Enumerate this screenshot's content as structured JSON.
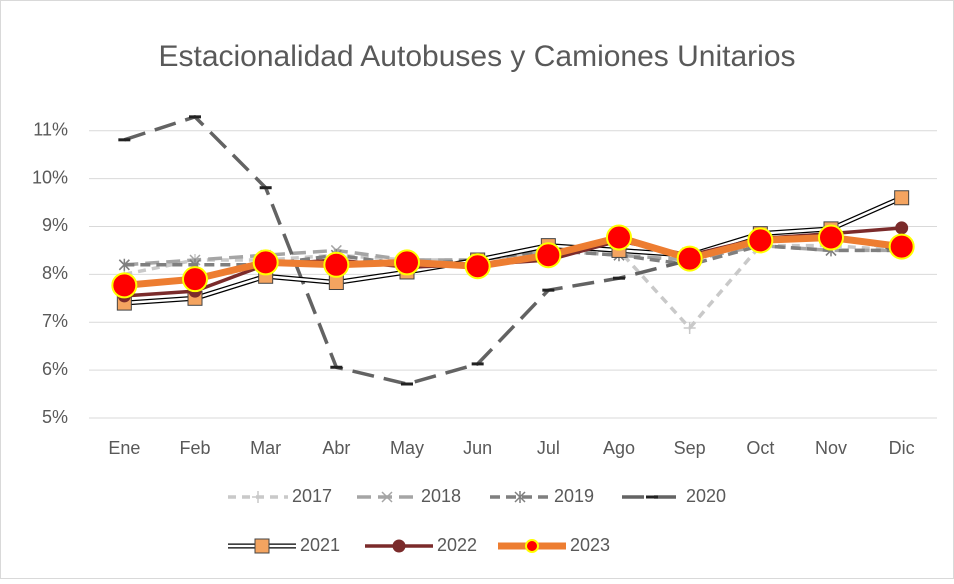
{
  "chart_data": {
    "type": "line",
    "title": "Estacionalidad Autobuses y Camiones Unitarios",
    "categories": [
      "Ene",
      "Feb",
      "Mar",
      "Abr",
      "May",
      "Jun",
      "Jul",
      "Ago",
      "Sep",
      "Oct",
      "Nov",
      "Dic"
    ],
    "ylim": [
      5,
      11.6
    ],
    "yticks": [
      {
        "value": 5,
        "label": "5%"
      },
      {
        "value": 6,
        "label": "6%"
      },
      {
        "value": 7,
        "label": "7%"
      },
      {
        "value": 8,
        "label": "8%"
      },
      {
        "value": 9,
        "label": "9%"
      },
      {
        "value": 10,
        "label": "10%"
      },
      {
        "value": 11,
        "label": "11%"
      }
    ],
    "grid": true,
    "legend": "bottom",
    "series": [
      {
        "name": "2017",
        "color": "#c9c9c9",
        "dash": "8,6",
        "marker": "plus",
        "values": [
          8.0,
          8.3,
          8.3,
          8.4,
          8.3,
          8.3,
          8.5,
          8.5,
          6.88,
          8.6,
          8.6,
          8.5
        ]
      },
      {
        "name": "2018",
        "color": "#a5a5a5",
        "dash": "14,7",
        "marker": "x",
        "values": [
          8.2,
          8.3,
          8.4,
          8.5,
          8.3,
          8.3,
          8.5,
          8.4,
          8.3,
          8.6,
          8.5,
          8.5
        ]
      },
      {
        "name": "2019",
        "color": "#7f7f7f",
        "dash": "10,6",
        "marker": "star",
        "values": [
          8.2,
          8.2,
          8.2,
          8.4,
          8.2,
          8.3,
          8.5,
          8.4,
          8.2,
          8.6,
          8.5,
          8.5
        ]
      },
      {
        "name": "2020",
        "color": "#636363",
        "dash": "22,10",
        "marker": "dash",
        "values": [
          10.81,
          11.29,
          9.81,
          6.06,
          5.71,
          6.13,
          7.67,
          7.92,
          8.3,
          8.7,
          8.8,
          8.5
        ]
      },
      {
        "name": "2021",
        "color": "#000000",
        "fill": "#f4a460",
        "marker": "square",
        "double": true,
        "values": [
          7.4,
          7.5,
          7.96,
          7.83,
          8.05,
          8.3,
          8.6,
          8.5,
          8.4,
          8.85,
          8.95,
          9.6
        ]
      },
      {
        "name": "2022",
        "color": "#7b2b2b",
        "marker": "circle",
        "values": [
          7.55,
          7.65,
          8.2,
          8.3,
          8.15,
          8.2,
          8.3,
          8.7,
          8.4,
          8.75,
          8.85,
          8.97
        ]
      },
      {
        "name": "2023",
        "color": "#ed7d31",
        "fill": "#ff0000",
        "stroke": "#ffff00",
        "marker": "bigcircle",
        "values": [
          7.77,
          7.9,
          8.25,
          8.2,
          8.25,
          8.17,
          8.4,
          8.77,
          8.33,
          8.71,
          8.77,
          8.58
        ]
      }
    ]
  }
}
